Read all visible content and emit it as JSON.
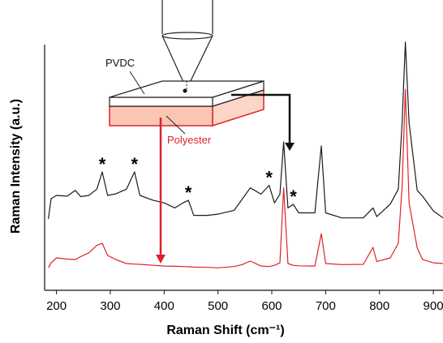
{
  "chart_data": {
    "type": "line",
    "x_label": "Raman Shift (cm⁻¹)",
    "y_label": "Raman Intensity (a.u.)",
    "xlim": [
      178,
      918
    ],
    "ylim": [
      0,
      100
    ],
    "xticks": [
      200,
      300,
      400,
      500,
      600,
      700,
      800,
      900
    ],
    "x": [
      185,
      190,
      200,
      220,
      235,
      245,
      260,
      275,
      285,
      295,
      310,
      330,
      345,
      355,
      380,
      400,
      420,
      435,
      445,
      455,
      480,
      500,
      530,
      545,
      560,
      580,
      595,
      605,
      615,
      622,
      630,
      640,
      650,
      680,
      692,
      700,
      730,
      770,
      788,
      795,
      820,
      835,
      842,
      848,
      855,
      870,
      880,
      900,
      918
    ],
    "series": [
      {
        "name": "PVDC",
        "color": "#1a1a1a",
        "values": [
          28.6,
          36.7,
          38,
          37.7,
          40,
          37.5,
          38,
          40.5,
          47.4,
          38,
          38.6,
          40.5,
          47.4,
          38,
          36,
          35,
          33,
          35,
          36,
          30,
          30,
          30.5,
          32,
          36.5,
          41,
          38.5,
          42,
          35,
          38.5,
          59.4,
          33,
          34.4,
          31,
          31,
          57.8,
          31,
          29,
          29,
          33,
          29.5,
          34.5,
          40.5,
          67,
          99.4,
          67,
          40,
          37.7,
          31.8,
          29
        ]
      },
      {
        "name": "Polyester",
        "color": "#e0202a",
        "values": [
          9,
          11,
          13,
          12.5,
          12.3,
          13.5,
          15,
          18,
          18.8,
          14,
          12.3,
          10.7,
          10.5,
          10.4,
          10,
          9.7,
          9.6,
          9.5,
          9.4,
          9.3,
          9.2,
          9,
          9.5,
          10.3,
          11.7,
          9.7,
          9.5,
          10,
          11,
          41,
          10.7,
          10,
          9.8,
          9.7,
          22.7,
          10.7,
          10.3,
          10.4,
          17.2,
          11.5,
          13,
          18.8,
          41.5,
          80.5,
          35,
          17,
          12.3,
          11,
          10.7
        ]
      }
    ],
    "annotations": [
      {
        "text": "*",
        "x": 285
      },
      {
        "text": "*",
        "x": 345
      },
      {
        "text": "*",
        "x": 445
      },
      {
        "text": "*",
        "x": 595
      },
      {
        "text": "*",
        "x": 640
      }
    ]
  }
}
